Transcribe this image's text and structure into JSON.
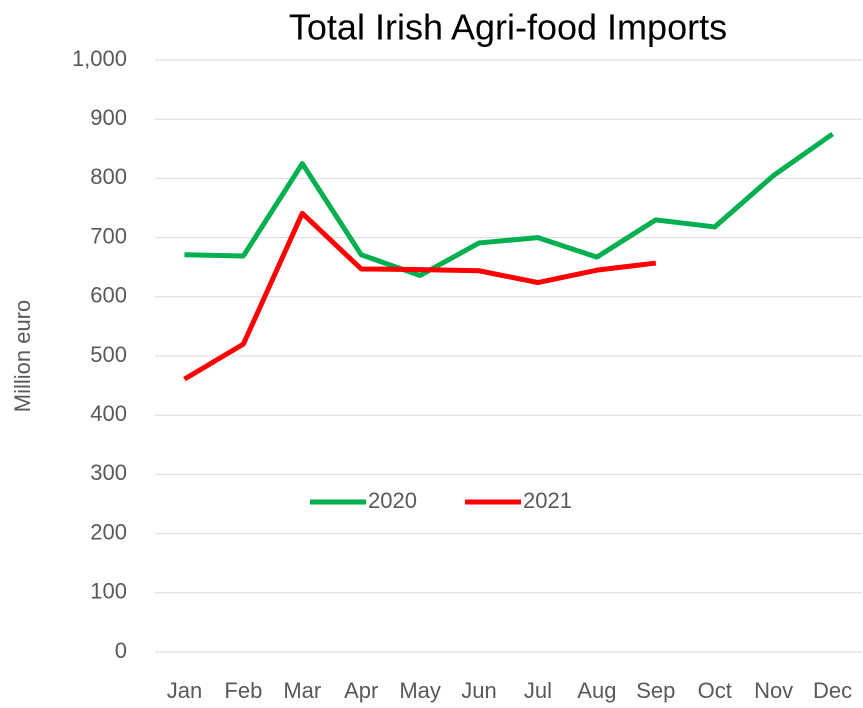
{
  "chart_data": {
    "type": "line",
    "title": "Total Irish Agri-food Imports",
    "y_label": "Million euro",
    "categories": [
      "Jan",
      "Feb",
      "Mar",
      "Apr",
      "May",
      "Jun",
      "Jul",
      "Aug",
      "Sep",
      "Oct",
      "Nov",
      "Dec"
    ],
    "series": [
      {
        "name": "2020",
        "color": "#00b050",
        "values": [
          671,
          669,
          825,
          671,
          636,
          691,
          700,
          667,
          730,
          718,
          805,
          875
        ]
      },
      {
        "name": "2021",
        "color": "#ff0000",
        "values": [
          461,
          520,
          741,
          647,
          646,
          644,
          624,
          645,
          657,
          null,
          null,
          null
        ]
      }
    ],
    "ylim": [
      0,
      1000
    ],
    "yticks": [
      0,
      100,
      200,
      300,
      400,
      500,
      600,
      700,
      800,
      900,
      {
        "value": 1000,
        "label": "1,000"
      }
    ],
    "grid": true,
    "legend": "center"
  }
}
